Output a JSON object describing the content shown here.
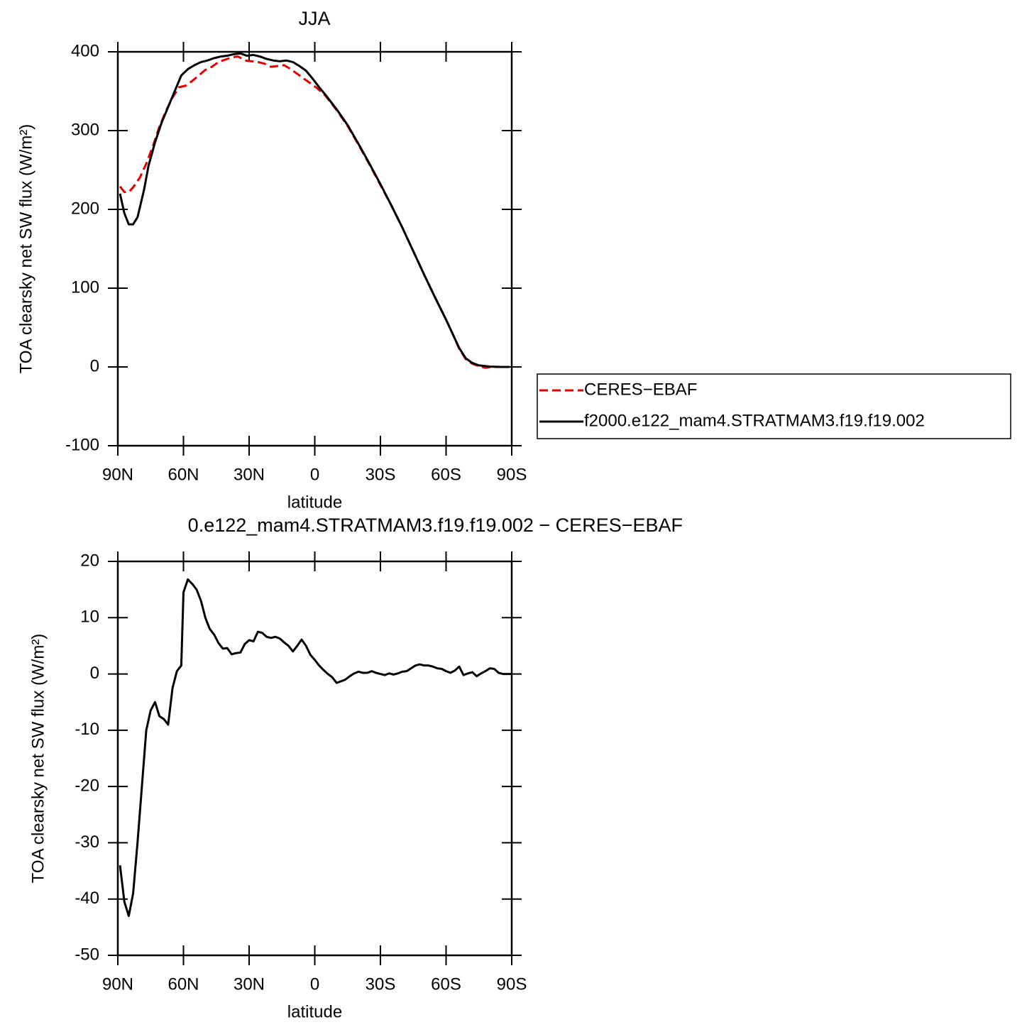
{
  "chart_data": [
    {
      "type": "line",
      "title": "JJA",
      "xlabel": "latitude",
      "ylabel": "TOA clearsky net SW flux (W/m²)",
      "xlim": [
        90,
        -90
      ],
      "xticks": [
        {
          "value": 90,
          "label": "90N"
        },
        {
          "value": 60,
          "label": "60N"
        },
        {
          "value": 30,
          "label": "30N"
        },
        0,
        {
          "value": -30,
          "label": "30S"
        },
        {
          "value": -60,
          "label": "60S"
        },
        {
          "value": -90,
          "label": "90S"
        }
      ],
      "ylim": [
        -100,
        400
      ],
      "yticks": [
        -100,
        0,
        100,
        200,
        300,
        400
      ],
      "legend": "right",
      "series": [
        {
          "name": "CERES−EBAF",
          "color": "#e00000",
          "style": "dashed",
          "x": [
            89,
            87,
            85,
            83,
            80,
            77,
            74,
            71,
            68,
            65,
            62,
            59,
            56,
            53,
            50,
            47,
            44,
            41,
            38,
            35,
            32,
            29,
            26,
            23,
            20,
            17,
            14,
            11,
            8,
            5,
            2,
            -1,
            -5,
            -10,
            -15,
            -20,
            -25,
            -30,
            -35,
            -40,
            -45,
            -50,
            -55,
            -60,
            -63,
            -66,
            -69,
            -72,
            -75,
            -78,
            -81,
            -85,
            -89
          ],
          "values": [
            229,
            222,
            222,
            228,
            240,
            258,
            280,
            305,
            325,
            342,
            355,
            357,
            363,
            370,
            377,
            381,
            387,
            390,
            393,
            394,
            389,
            388,
            387,
            385,
            381,
            382,
            383,
            378,
            372,
            366,
            360,
            354,
            344,
            326,
            306,
            282,
            257,
            231,
            205,
            177,
            147,
            117,
            88,
            60,
            42,
            23,
            10,
            4,
            1,
            -1,
            0,
            0,
            0
          ]
        },
        {
          "name": "f2000.e122_mam4.STRATMAM3.f19.f19.002",
          "color": "#000000",
          "style": "solid",
          "x": [
            89,
            87,
            85,
            83,
            81,
            78,
            76,
            73,
            70,
            67,
            64,
            61,
            58,
            55,
            52,
            49,
            46,
            43,
            40,
            37,
            34,
            31,
            28,
            25,
            22,
            19,
            16,
            13,
            10,
            7,
            4,
            1,
            -2,
            -5,
            -10,
            -15,
            -20,
            -25,
            -30,
            -35,
            -40,
            -45,
            -50,
            -55,
            -60,
            -63,
            -66,
            -69,
            -72,
            -75,
            -80,
            -85,
            -89
          ],
          "values": [
            220,
            195,
            181,
            181,
            190,
            225,
            255,
            285,
            310,
            330,
            350,
            370,
            378,
            383,
            387,
            389,
            392,
            394,
            395,
            397,
            398,
            395,
            396,
            394,
            391,
            389,
            388,
            389,
            387,
            382,
            376,
            366,
            355,
            345,
            327,
            307,
            283,
            258,
            232,
            205,
            177,
            147,
            117,
            88,
            60,
            42,
            24,
            11,
            5,
            2,
            0.5,
            0,
            0
          ]
        }
      ]
    },
    {
      "type": "line",
      "title": "0.e122_mam4.STRATMAM3.f19.f19.002 − CERES−EBAF",
      "xlabel": "latitude",
      "ylabel": "TOA clearsky net SW flux (W/m²)",
      "xlim": [
        90,
        -90
      ],
      "xticks": [
        {
          "value": 90,
          "label": "90N"
        },
        {
          "value": 60,
          "label": "60N"
        },
        {
          "value": 30,
          "label": "30N"
        },
        0,
        {
          "value": -30,
          "label": "30S"
        },
        {
          "value": -60,
          "label": "60S"
        },
        {
          "value": -90,
          "label": "90S"
        }
      ],
      "ylim": [
        -50,
        20
      ],
      "yticks": [
        -50,
        -40,
        -30,
        -20,
        -10,
        0,
        10,
        20
      ],
      "series": [
        {
          "color": "#000000",
          "style": "solid",
          "x": [
            89,
            87,
            85,
            83,
            81,
            79,
            77,
            75,
            73,
            71,
            69,
            67,
            65,
            63,
            61,
            60,
            58,
            56,
            54,
            52,
            50,
            48,
            46,
            44,
            42,
            40,
            38,
            36,
            34,
            32,
            30,
            28,
            26,
            24,
            22,
            20,
            18,
            16,
            14,
            12,
            10,
            8,
            6,
            4,
            2,
            0,
            -2,
            -4,
            -6,
            -8,
            -10,
            -12,
            -14,
            -16,
            -18,
            -20,
            -22,
            -24,
            -26,
            -28,
            -30,
            -32,
            -34,
            -36,
            -38,
            -40,
            -42,
            -44,
            -46,
            -48,
            -50,
            -52,
            -54,
            -56,
            -58,
            -60,
            -62,
            -64,
            -66,
            -68,
            -70,
            -72,
            -74,
            -76,
            -78,
            -80,
            -82,
            -84,
            -86,
            -88,
            -90
          ],
          "values": [
            -34,
            -40.5,
            -43,
            -39,
            -30,
            -20,
            -10,
            -6.5,
            -5,
            -7.5,
            -8,
            -9,
            -2.5,
            0.5,
            1.5,
            14.5,
            16.8,
            16,
            15,
            13,
            10,
            8,
            7,
            5.5,
            4.5,
            4.6,
            3.5,
            3.7,
            3.8,
            5.3,
            6,
            5.8,
            7.5,
            7.3,
            6.6,
            6.4,
            6.6,
            6.3,
            5.6,
            5,
            4,
            5,
            6.1,
            5,
            3.4,
            2.5,
            1.5,
            0.7,
            0,
            -0.6,
            -1.6,
            -1.3,
            -1,
            -0.4,
            0.1,
            0.4,
            0.2,
            0.2,
            0.5,
            0.2,
            0,
            -0.2,
            0.1,
            -0.1,
            0.1,
            0.4,
            0.5,
            1,
            1.5,
            1.7,
            1.5,
            1.5,
            1.3,
            1,
            0.9,
            0.5,
            0.2,
            0.6,
            1.3,
            -0.2,
            0.1,
            0.3,
            -0.4,
            0.1,
            0.5,
            1,
            0.9,
            0.2,
            0,
            0,
            0
          ]
        }
      ]
    }
  ]
}
